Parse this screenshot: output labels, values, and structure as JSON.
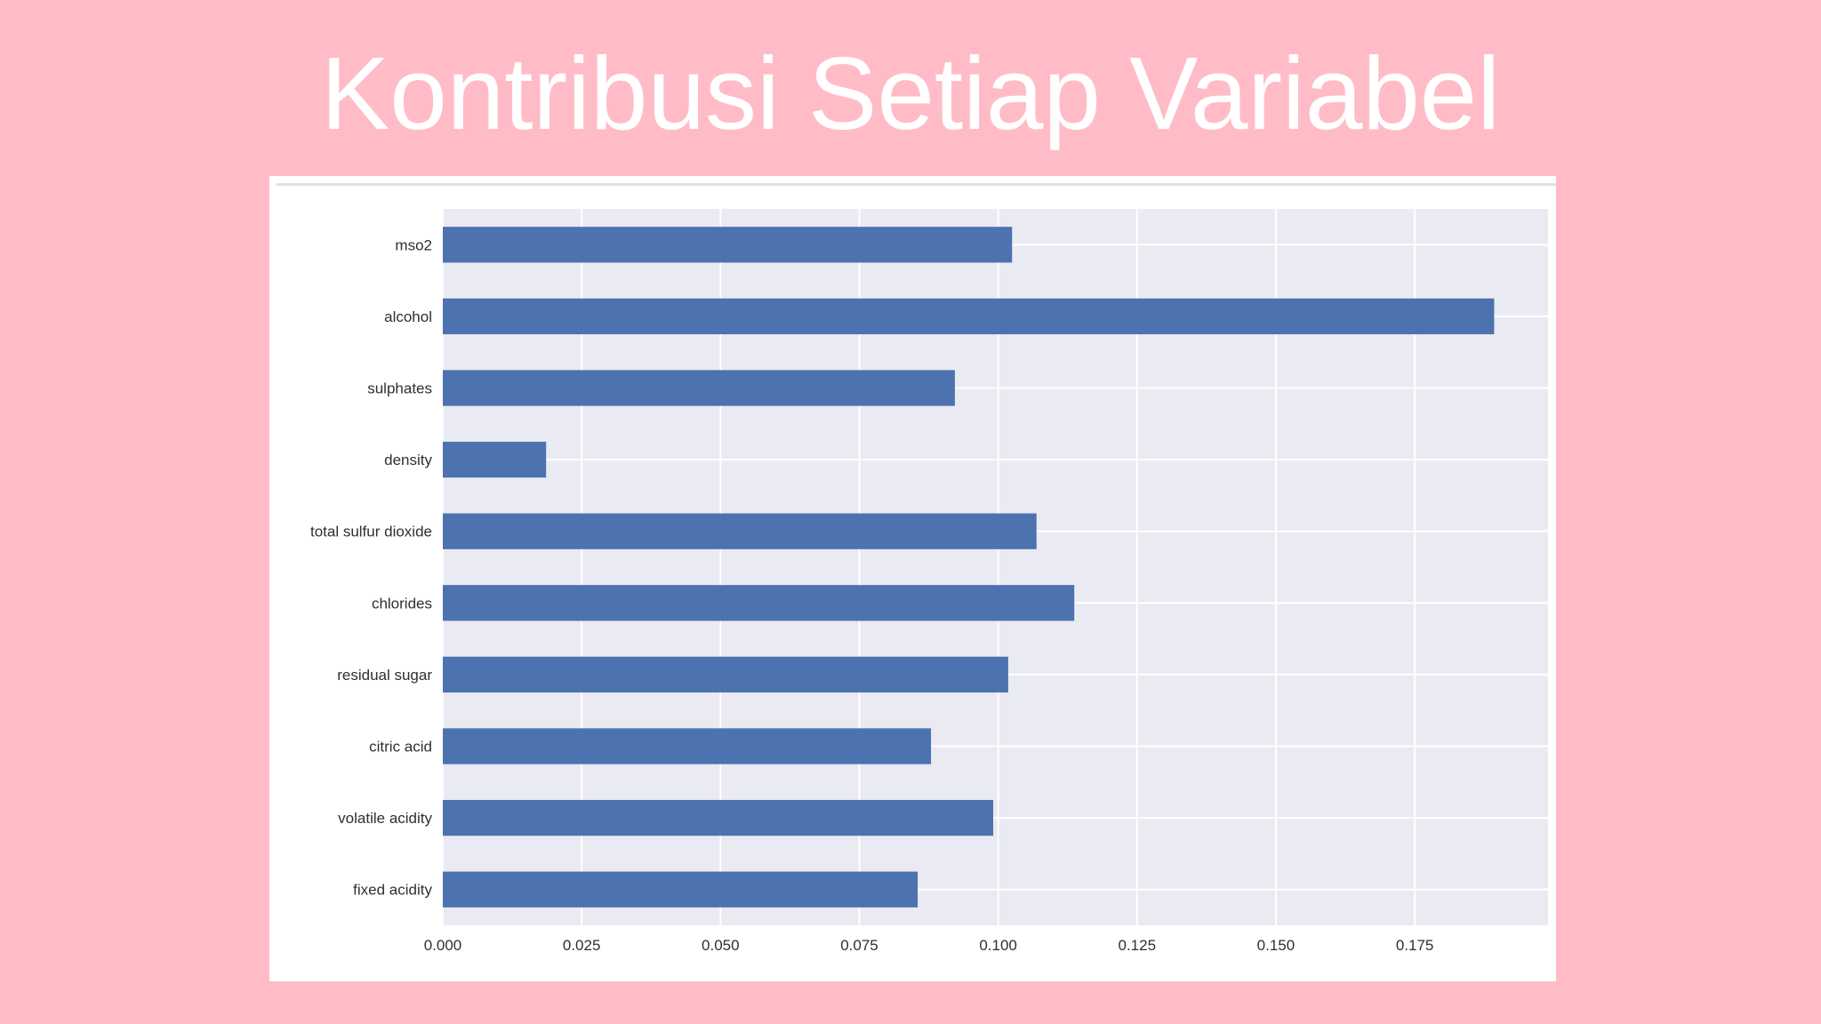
{
  "slide": {
    "title": "Kontribusi Setiap Variabel"
  },
  "colors": {
    "background": "#ffbcc7",
    "bar": "#4c72b0",
    "plot_bg": "#eaeaf2",
    "grid": "#ffffff"
  },
  "chart_data": {
    "type": "bar",
    "orientation": "horizontal",
    "categories": [
      "mso2",
      "alcohol",
      "sulphates",
      "density",
      "total sulfur dioxide",
      "chlorides",
      "residual sugar",
      "citric acid",
      "volatile acidity",
      "fixed acidity"
    ],
    "values": [
      0.1025,
      0.1893,
      0.0922,
      0.0186,
      0.1069,
      0.1137,
      0.1018,
      0.0879,
      0.0991,
      0.0855
    ],
    "xticks": [
      "0.000",
      "0.025",
      "0.050",
      "0.075",
      "0.100",
      "0.125",
      "0.150",
      "0.175"
    ],
    "xlim": [
      0,
      0.199
    ],
    "title": "",
    "xlabel": "",
    "ylabel": "",
    "grid": true
  }
}
